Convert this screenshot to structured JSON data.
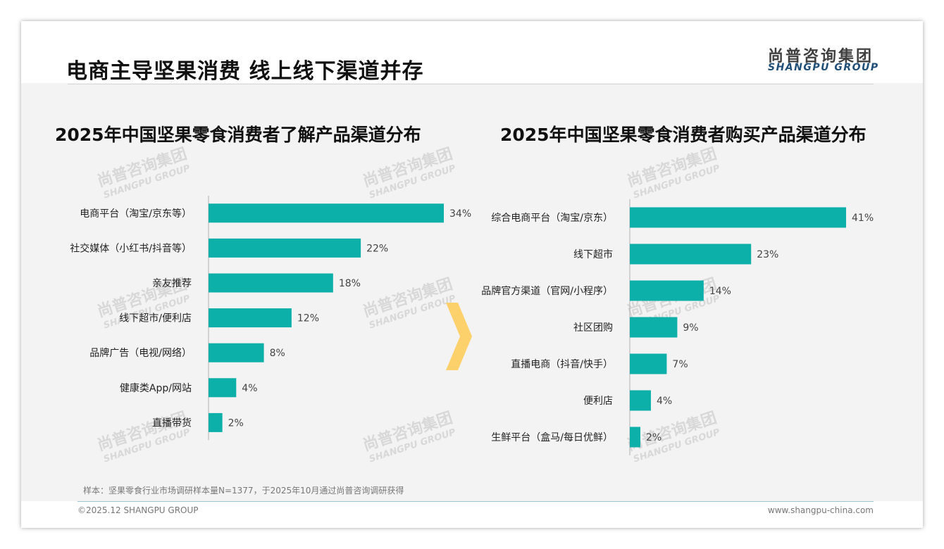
{
  "header": {
    "title": "电商主导坚果消费 线上线下渠道并存",
    "logo_cn": "尚普咨询集团",
    "logo_en": "SHANGPU GROUP"
  },
  "colors": {
    "bar": "#0cb0a9",
    "arrow": "#fcd06a",
    "axis": "#b0b0b0"
  },
  "chart_data": [
    {
      "type": "bar",
      "orientation": "horizontal",
      "title": "2025年中国坚果零食消费者了解产品渠道分布",
      "categories": [
        "电商平台（淘宝/京东等）",
        "社交媒体（小红书/抖音等）",
        "亲友推荐",
        "线下超市/便利店",
        "品牌广告（电视/网络）",
        "健康类App/网站",
        "直播带货"
      ],
      "values": [
        34,
        22,
        18,
        12,
        8,
        4,
        2
      ],
      "value_labels": [
        "34%",
        "22%",
        "18%",
        "12%",
        "8%",
        "4%",
        "2%"
      ],
      "unit": "%"
    },
    {
      "type": "bar",
      "orientation": "horizontal",
      "title": "2025年中国坚果零食消费者购买产品渠道分布",
      "categories": [
        "综合电商平台（淘宝/京东）",
        "线下超市",
        "品牌官方渠道（官网/小程序）",
        "社区团购",
        "直播电商（抖音/快手）",
        "便利店",
        "生鲜平台（盒马/每日优鲜）"
      ],
      "values": [
        41,
        23,
        14,
        9,
        7,
        4,
        2
      ],
      "value_labels": [
        "41%",
        "23%",
        "14%",
        "9%",
        "7%",
        "4%",
        "2%"
      ],
      "unit": "%"
    }
  ],
  "footer": {
    "source": "样本：坚果零食行业市场调研样本量N=1377，于2025年10月通过尚普咨询调研获得",
    "copyright": "©2025.12 SHANGPU GROUP",
    "website": "www.shangpu-china.com"
  }
}
